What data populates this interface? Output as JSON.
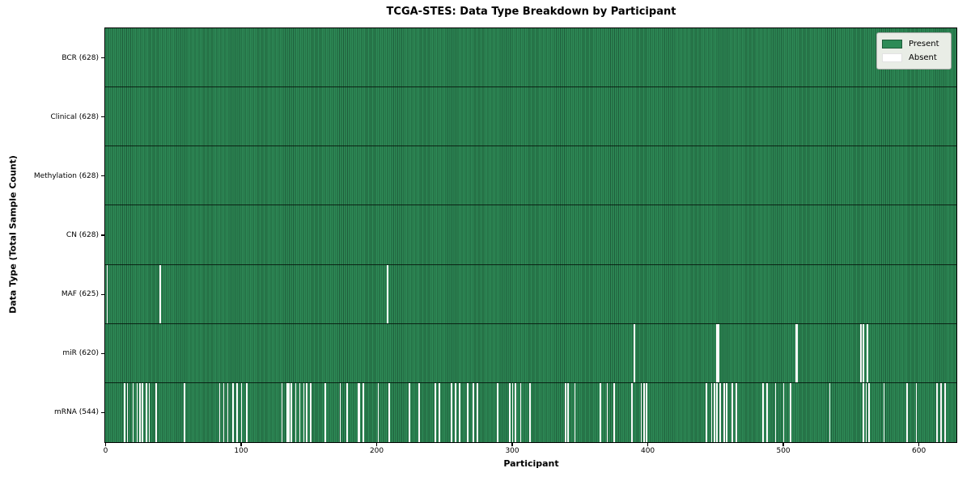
{
  "chart_data": {
    "type": "heatmap",
    "title": "TCGA-STES: Data Type Breakdown by Participant",
    "xlabel": "Participant",
    "ylabel": "Data Type (Total Sample Count)",
    "n_participants": 628,
    "xlim": [
      0,
      628
    ],
    "x_ticks": [
      0,
      100,
      200,
      300,
      400,
      500,
      600
    ],
    "grid": false,
    "legend_position": "upper right",
    "legend": [
      {
        "label": "Present",
        "color": "#2e8b57"
      },
      {
        "label": "Absent",
        "color": "#ffffff"
      }
    ],
    "colors": {
      "present_fill": "#2e8b57",
      "present_edge": "#1e5c3a",
      "absent_fill": "#fbfbfb",
      "spine": "#000000"
    },
    "rows": [
      {
        "data_type": "BCR",
        "label": "BCR (628)",
        "present_count": 628,
        "absent_participants": []
      },
      {
        "data_type": "Clinical",
        "label": "Clinical (628)",
        "present_count": 628,
        "absent_participants": []
      },
      {
        "data_type": "Methylation",
        "label": "Methylation (628)",
        "present_count": 628,
        "absent_participants": []
      },
      {
        "data_type": "CN",
        "label": "CN (628)",
        "present_count": 628,
        "absent_participants": []
      },
      {
        "data_type": "MAF",
        "label": "MAF (625)",
        "present_count": 625,
        "absent_participants": [
          1,
          40,
          208
        ]
      },
      {
        "data_type": "miR",
        "label": "miR (620)",
        "present_count": 620,
        "absent_participants": [
          390,
          451,
          452,
          509,
          510,
          557,
          559,
          562
        ]
      },
      {
        "data_type": "mRNA",
        "label": "mRNA (544)",
        "present_count": 544,
        "absent_participants": [
          14,
          16,
          20,
          23,
          25,
          27,
          30,
          32,
          37,
          58,
          84,
          87,
          90,
          94,
          97,
          100,
          104,
          130,
          134,
          135,
          137,
          140,
          143,
          146,
          148,
          151,
          162,
          173,
          178,
          186,
          187,
          190,
          201,
          209,
          224,
          231,
          243,
          246,
          255,
          258,
          261,
          267,
          271,
          274,
          289,
          298,
          300,
          302,
          306,
          313,
          339,
          341,
          346,
          365,
          370,
          375,
          388,
          395,
          397,
          399,
          443,
          447,
          449,
          451,
          453,
          456,
          458,
          462,
          465,
          485,
          488,
          494,
          500,
          505,
          534,
          559,
          561,
          563,
          574,
          591,
          598,
          613,
          616,
          619
        ]
      }
    ]
  }
}
